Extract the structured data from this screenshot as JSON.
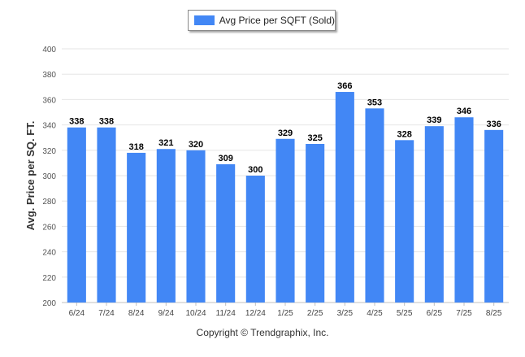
{
  "chart_data": {
    "type": "bar",
    "categories": [
      "6/24",
      "7/24",
      "8/24",
      "9/24",
      "10/24",
      "11/24",
      "12/24",
      "1/25",
      "2/25",
      "3/25",
      "4/25",
      "5/25",
      "6/25",
      "7/25",
      "8/25"
    ],
    "series": [
      {
        "name": "Avg Price per SQFT (Sold)",
        "values": [
          338,
          338,
          318,
          321,
          320,
          309,
          300,
          329,
          325,
          366,
          353,
          328,
          339,
          346,
          336
        ],
        "color": "#4287f5"
      }
    ],
    "data_labels": [
      "338",
      "338",
      "318",
      "321",
      "320",
      "309",
      "300",
      "329",
      "325",
      "366",
      "353",
      "328",
      "339",
      "346",
      "336"
    ],
    "ylabel": "Avg. Price per SQ. FT.",
    "xlabel": "",
    "ylim": [
      200,
      400
    ],
    "yticks": [
      200,
      220,
      240,
      260,
      280,
      300,
      320,
      340,
      360,
      380,
      400
    ],
    "grid": true,
    "legend_position": "top-center"
  },
  "legend": {
    "label": "Avg Price per SQFT (Sold)",
    "color": "#4287f5"
  },
  "footer": {
    "copyright": "Copyright © Trendgraphix, Inc."
  }
}
